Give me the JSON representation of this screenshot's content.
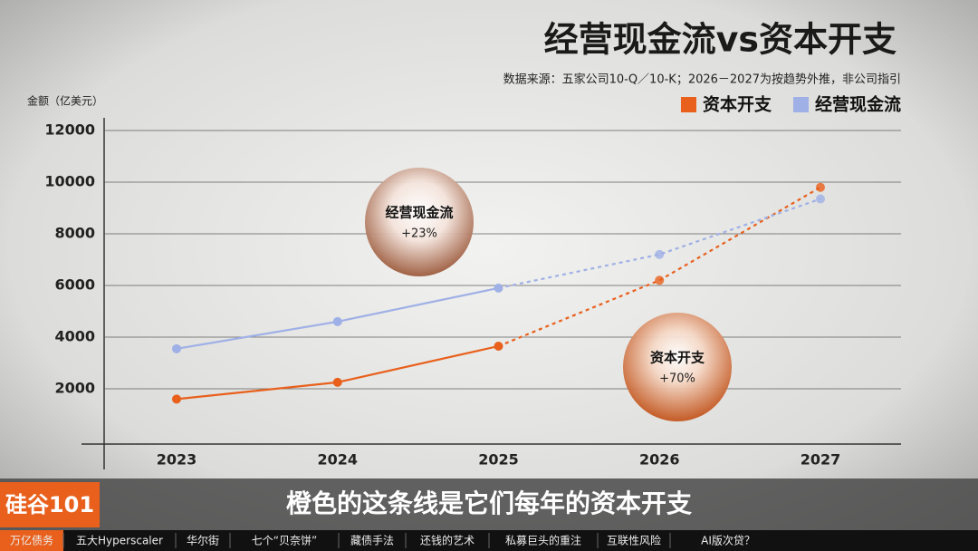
{
  "chart_data": {
    "type": "line",
    "title": "经营现金流vs资本开支",
    "subtitle": "数据来源：五家公司10-Q／10-K；2026－2027为按趋势外推，非公司指引",
    "y_label": "金额（亿美元）",
    "categories": [
      "2023",
      "2024",
      "2025",
      "2026",
      "2027"
    ],
    "series": [
      {
        "name": "资本开支",
        "color": "#e8601c",
        "values": [
          1600,
          2250,
          3650,
          6200,
          9800
        ]
      },
      {
        "name": "经营现金流",
        "color": "#9fb0e6",
        "values": [
          3550,
          4600,
          5900,
          7200,
          9350
        ]
      }
    ],
    "forecast_from_index": 2,
    "ylim": [
      0,
      12000
    ],
    "yticks": [
      2000,
      4000,
      6000,
      8000,
      10000,
      12000
    ],
    "grid": true,
    "legend": "top-right",
    "annotations": [
      {
        "text": "经营现金流",
        "detail": "+23%"
      },
      {
        "text": "资本开支",
        "detail": "+70%"
      }
    ]
  },
  "overlay": {
    "logo": "硅谷101",
    "caption": "橙色的这条线是它们每年的资本开支",
    "nav": [
      "万亿债务",
      "五大Hyperscaler",
      "华尔街",
      "七个“贝奈饼”",
      "藏债手法",
      "还钱的艺术",
      "私募巨头的重注",
      "互联性风险",
      "AI版次贷？"
    ],
    "nav_active": 0
  }
}
